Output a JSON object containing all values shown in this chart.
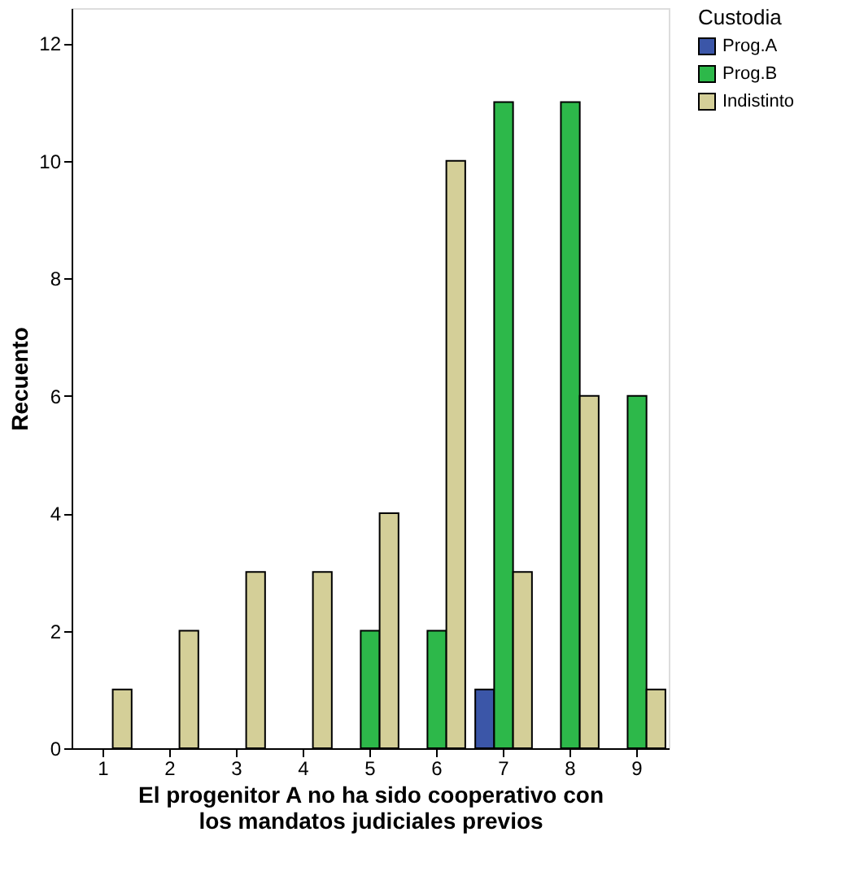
{
  "chart_data": {
    "type": "bar",
    "xlabel": "El progenitor A no ha sido cooperativo con\nlos mandatos judiciales previos",
    "ylabel": "Recuento",
    "legend_title": "Custodia",
    "categories": [
      "1",
      "2",
      "3",
      "4",
      "5",
      "6",
      "7",
      "8",
      "9"
    ],
    "series": [
      {
        "name": "Prog.A",
        "color": "#3b56a8",
        "values": [
          null,
          null,
          null,
          null,
          null,
          null,
          1,
          null,
          null
        ]
      },
      {
        "name": "Prog.B",
        "color": "#2db84a",
        "values": [
          null,
          null,
          null,
          null,
          2,
          2,
          11,
          11,
          6
        ]
      },
      {
        "name": "Indistinto",
        "color": "#d4cf98",
        "values": [
          1,
          2,
          3,
          3,
          4,
          10,
          3,
          6,
          1
        ]
      }
    ],
    "ylim": [
      0,
      12.6
    ],
    "yticks": [
      0,
      2,
      4,
      6,
      8,
      10,
      12
    ],
    "grid": false,
    "legend": "top right"
  }
}
